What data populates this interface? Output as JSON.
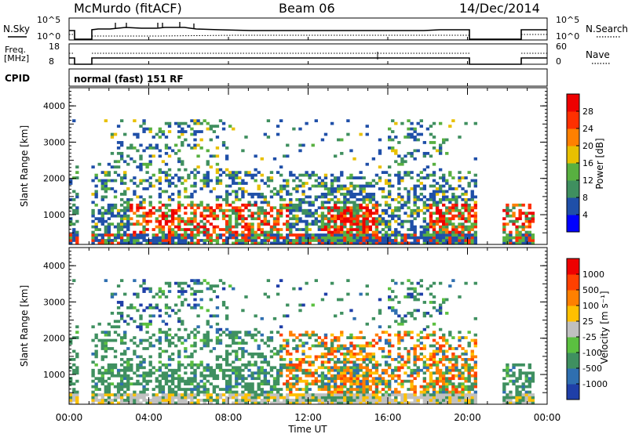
{
  "header": {
    "station": "McMurdo (fitACF)",
    "beam": "Beam 06",
    "date": "14/Dec/2014"
  },
  "status_panels": {
    "nsky_label": "N.Sky",
    "nsky_ticks": [
      "10^5",
      "10^0"
    ],
    "nsearch_label": "N.Search",
    "nsearch_ticks": [
      "10^5",
      "10^0"
    ],
    "freq_label": "Freq.",
    "freq_unit": "[MHz]",
    "freq_ticks": [
      "18",
      "8"
    ],
    "nave_label": "Nave",
    "nave_ticks": [
      "60",
      "0"
    ],
    "cpid_label": "CPID",
    "cpid_text": "normal (fast) 151 RF"
  },
  "chart_data": [
    {
      "type": "heatmap",
      "panel": "power",
      "ylabel": "Slant Range [km]",
      "y_ticks": [
        "4000",
        "3000",
        "2000",
        "1000"
      ],
      "ylim": [
        180,
        4500
      ],
      "xlim_hours": [
        0,
        24
      ],
      "colorbar_label": "Power [dB]",
      "colorbar_ticks": [
        "28",
        "24",
        "20",
        "16",
        "12",
        "8",
        "4"
      ],
      "colors": [
        "#0000ff",
        "#1f4fa8",
        "#3f8f5f",
        "#58b040",
        "#e8c000",
        "#ff8000",
        "#ff3000",
        "#ee0000"
      ],
      "data_periods_hours": [
        [
          0,
          0.35
        ],
        [
          1.0,
          20.4
        ],
        [
          21.7,
          23.3
        ]
      ]
    },
    {
      "type": "heatmap",
      "panel": "velocity",
      "ylabel": "Slant Range [km]",
      "y_ticks": [
        "4000",
        "3000",
        "2000",
        "1000"
      ],
      "ylim": [
        180,
        4500
      ],
      "xlim_hours": [
        0,
        24
      ],
      "colorbar_label": "Velocity [m s⁻¹]",
      "colorbar_ticks": [
        "1000",
        "500",
        "100",
        "25",
        "-25",
        "-100",
        "-500",
        "-1000"
      ],
      "colors": [
        "#1f3fa8",
        "#2f6fb0",
        "#3f9060",
        "#5bc040",
        "#c0c0c0",
        "#ffc000",
        "#ff8000",
        "#ff4000",
        "#ee0000"
      ],
      "data_periods_hours": [
        [
          0,
          0.35
        ],
        [
          1.0,
          20.4
        ],
        [
          21.7,
          23.3
        ]
      ]
    }
  ],
  "x_axis": {
    "label": "Time UT",
    "ticks": [
      "00:00",
      "04:00",
      "08:00",
      "12:00",
      "16:00",
      "20:00",
      "00:00"
    ]
  }
}
